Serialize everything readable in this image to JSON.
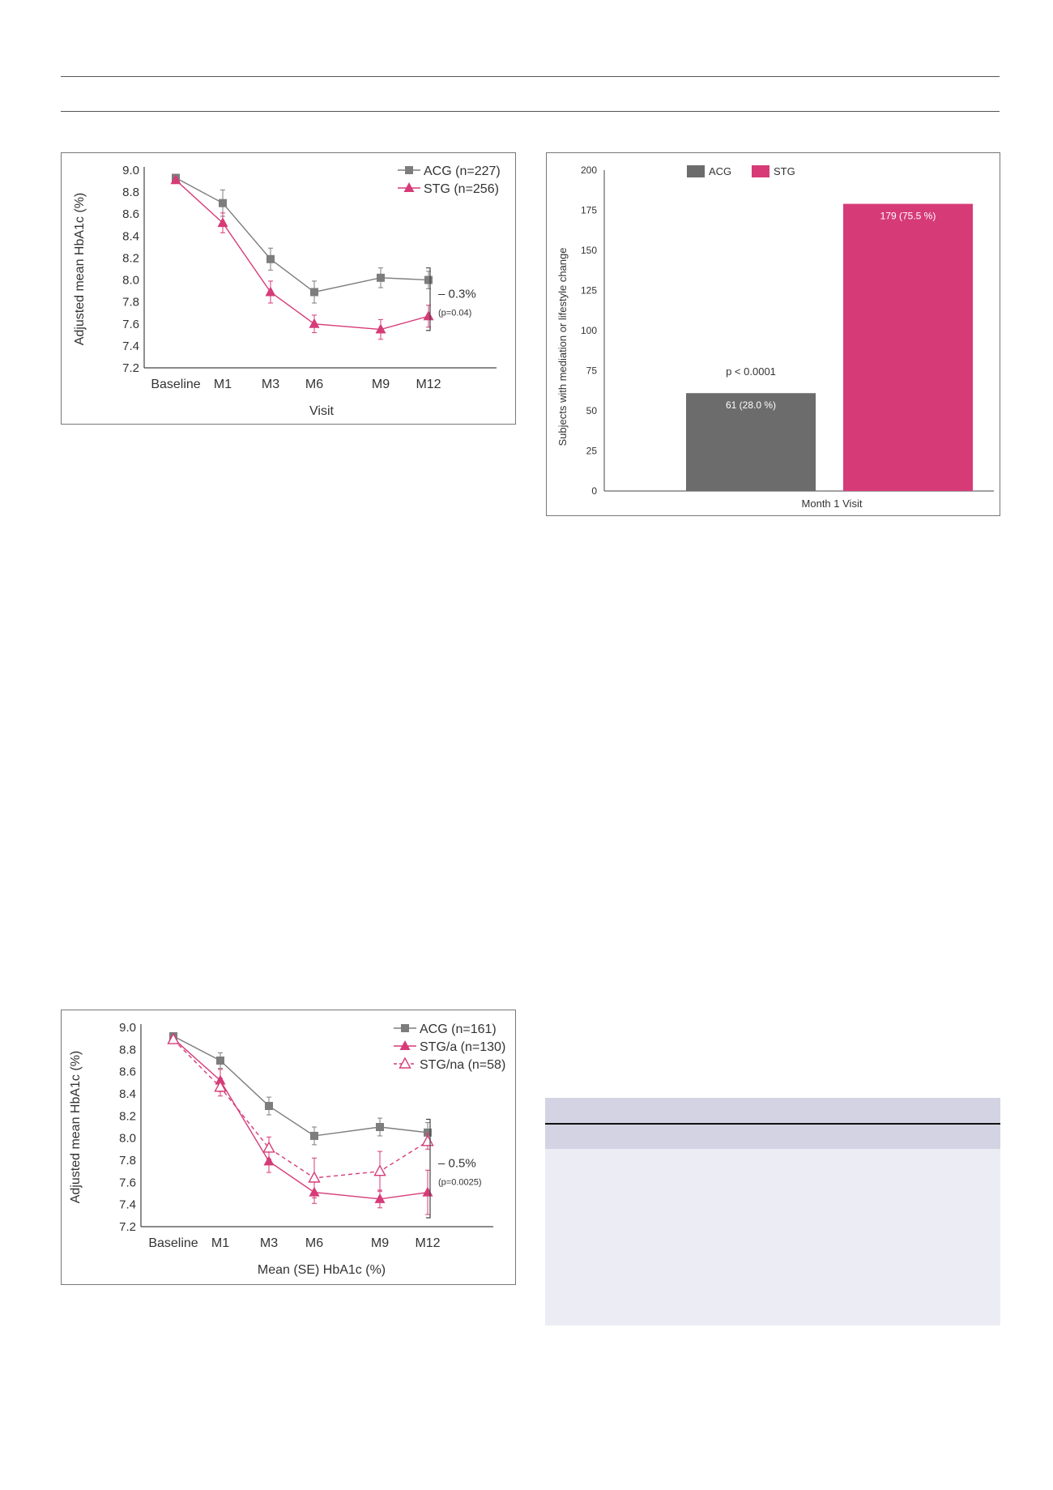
{
  "charts": {
    "hba1c_top": {
      "type": "line",
      "x": [
        "Baseline",
        "M1",
        "M3",
        "M6",
        "M9",
        "M12"
      ],
      "xlabel": "Visit",
      "ylabel": "Adjusted mean HbA1c (%)",
      "ylim": [
        7.2,
        9.0
      ],
      "yticks": [
        "9.0",
        "8.8",
        "8.6",
        "8.4",
        "8.2",
        "8.0",
        "7.8",
        "7.6",
        "7.4",
        "7.2"
      ],
      "series": [
        {
          "name": "ACG (n=227)",
          "color": "#7d7d7d",
          "marker": "square",
          "dashed": false,
          "values": [
            8.93,
            8.7,
            8.19,
            7.89,
            8.02,
            8.0
          ],
          "errors": [
            0.02,
            0.12,
            0.1,
            0.1,
            0.09,
            0.08
          ]
        },
        {
          "name": "STG  (n=256)",
          "color": "#d63b78",
          "marker": "triangle",
          "dashed": false,
          "values": [
            8.91,
            8.52,
            7.89,
            7.6,
            7.55,
            7.67
          ],
          "errors": [
            0.02,
            0.09,
            0.1,
            0.08,
            0.09,
            0.1
          ]
        }
      ],
      "annotation": {
        "diff": "– 0.3%",
        "p": "(p=0.04)"
      }
    },
    "subjects_bar": {
      "type": "bar",
      "categories": [
        "ACG",
        "STG"
      ],
      "values": [
        61,
        179
      ],
      "data_labels": [
        "61 (28.0 %)",
        "179 (75.5 %)"
      ],
      "colors": [
        "#6c6c6c",
        "#d63b78"
      ],
      "legend": [
        "ACG",
        "STG"
      ],
      "xlabel": "Month 1 Visit",
      "ylabel": "Subjects with mediation or lifestyle change",
      "ylim": [
        0,
        200
      ],
      "yticks": [
        "200",
        "175",
        "150",
        "125",
        "100",
        "75",
        "50",
        "25",
        "0"
      ],
      "annotation": "p < 0.0001"
    },
    "hba1c_bottom": {
      "type": "line",
      "x": [
        "Baseline",
        "M1",
        "M3",
        "M6",
        "M9",
        "M12"
      ],
      "xlabel": "Mean (SE) HbA1c (%)",
      "ylabel": "Adjusted mean HbA1c (%)",
      "ylim": [
        7.2,
        9.0
      ],
      "yticks": [
        "9.0",
        "8.8",
        "8.6",
        "8.4",
        "8.2",
        "8.0",
        "7.8",
        "7.6",
        "7.4",
        "7.2"
      ],
      "series": [
        {
          "name": "ACG (n=161)",
          "color": "#7d7d7d",
          "marker": "square",
          "dashed": false,
          "values": [
            8.92,
            8.7,
            8.29,
            8.02,
            8.1,
            8.05
          ],
          "errors": [
            0.02,
            0.07,
            0.08,
            0.08,
            0.08,
            0.09
          ]
        },
        {
          "name": "STG/a (n=130)",
          "color": "#d63b78",
          "marker": "triangle",
          "dashed": false,
          "values": [
            8.9,
            8.52,
            7.79,
            7.51,
            7.45,
            7.51
          ],
          "errors": [
            0.02,
            0.1,
            0.1,
            0.1,
            0.08,
            0.2
          ]
        },
        {
          "name": "STG/na (n=58)",
          "color": "#d63b78",
          "marker": "triangle-open",
          "dashed": true,
          "values": [
            8.89,
            8.46,
            7.91,
            7.64,
            7.7,
            7.97
          ],
          "errors": [
            0.02,
            0.08,
            0.1,
            0.18,
            0.18,
            0.07
          ]
        }
      ],
      "annotation": {
        "diff": "– 0.5%",
        "p": "(p=0.0025)"
      }
    }
  }
}
